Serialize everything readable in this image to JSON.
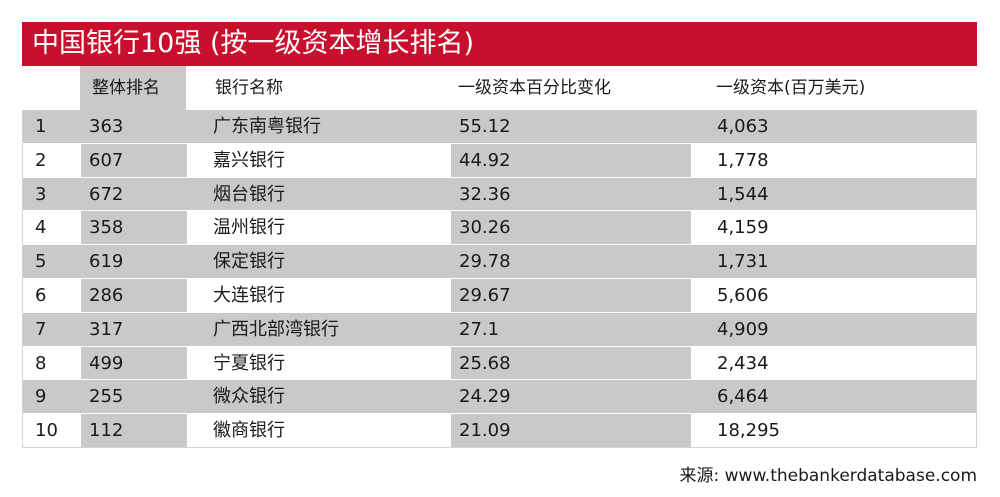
{
  "title": "中国银行10强 (按一级资本增长排名)",
  "headers": {
    "no": "",
    "overall_rank": "整体排名",
    "bank_name": "银行名称",
    "tier1_change": "一级资本百分比变化",
    "tier1_capital": "一级资本(百万美元)"
  },
  "rows": [
    {
      "no": "1",
      "rank": "363",
      "name": "广东南粤银行",
      "change": "55.12",
      "tier1": "4,063"
    },
    {
      "no": "2",
      "rank": "607",
      "name": "嘉兴银行",
      "change": "44.92",
      "tier1": "1,778"
    },
    {
      "no": "3",
      "rank": "672",
      "name": "烟台银行",
      "change": "32.36",
      "tier1": "1,544"
    },
    {
      "no": "4",
      "rank": "358",
      "name": "温州银行",
      "change": "30.26",
      "tier1": "4,159"
    },
    {
      "no": "5",
      "rank": "619",
      "name": "保定银行",
      "change": "29.78",
      "tier1": "1,731"
    },
    {
      "no": "6",
      "rank": "286",
      "name": "大连银行",
      "change": "29.67",
      "tier1": "5,606"
    },
    {
      "no": "7",
      "rank": "317",
      "name": "广西北部湾银行",
      "change": "27.1",
      "tier1": "4,909"
    },
    {
      "no": "8",
      "rank": "499",
      "name": "宁夏银行",
      "change": "25.68",
      "tier1": "2,434"
    },
    {
      "no": "9",
      "rank": "255",
      "name": "微众银行",
      "change": "24.29",
      "tier1": "6,464"
    },
    {
      "no": "10",
      "rank": "112",
      "name": "徽商银行",
      "change": "21.09",
      "tier1": "18,295"
    }
  ],
  "source": "来源: www.thebankerdatabase.com",
  "colors": {
    "title_bar": "#c8102e",
    "shade": "#c9c9c9"
  }
}
